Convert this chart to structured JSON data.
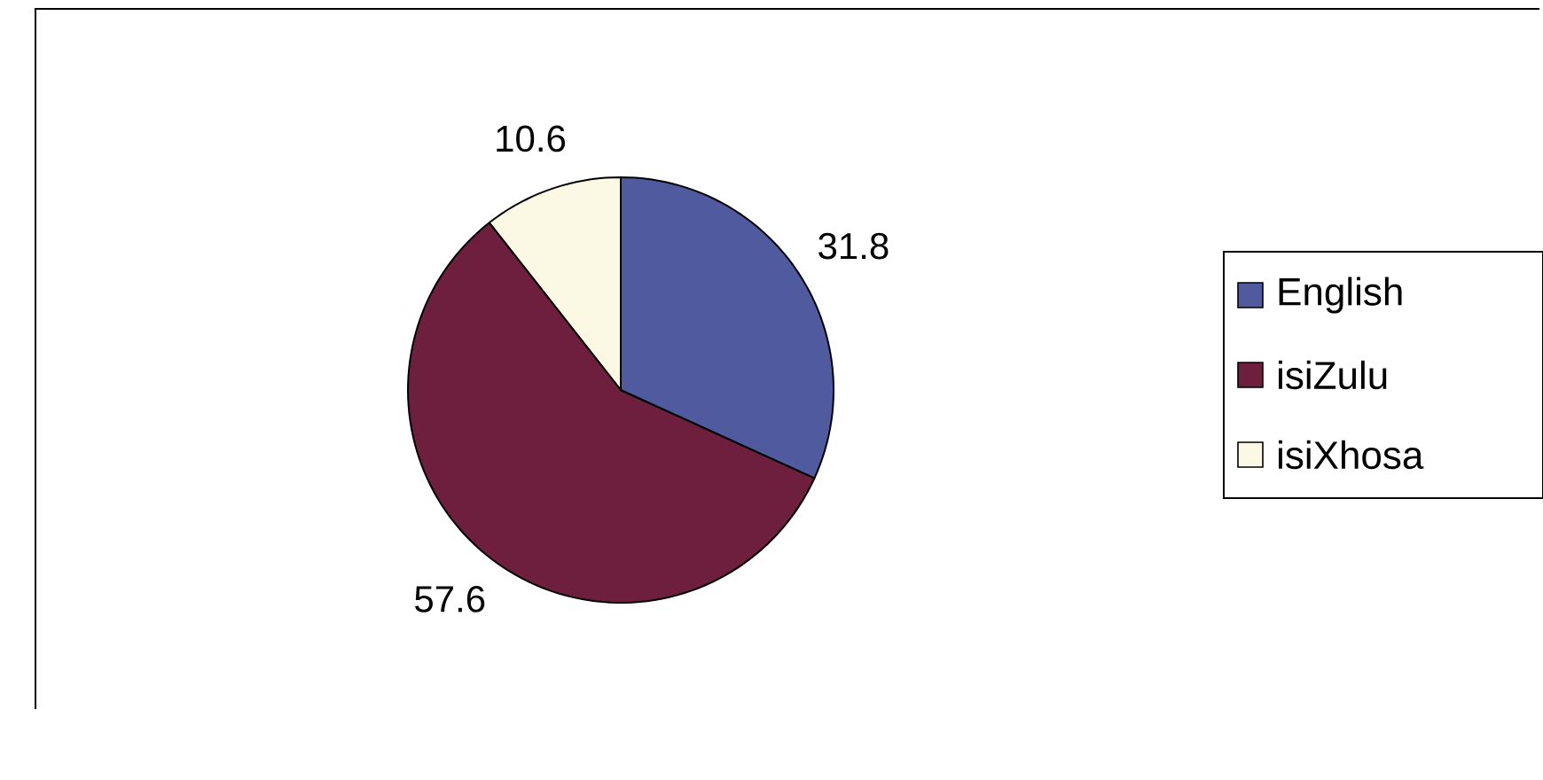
{
  "chart_data": {
    "type": "pie",
    "categories": [
      "English",
      "isiZulu",
      "isiXhosa"
    ],
    "values": [
      31.8,
      57.6,
      10.6
    ],
    "colors": [
      "#4f5b9e",
      "#6e1f3d",
      "#fbf9e3"
    ],
    "data_labels": true,
    "legend": "right"
  }
}
